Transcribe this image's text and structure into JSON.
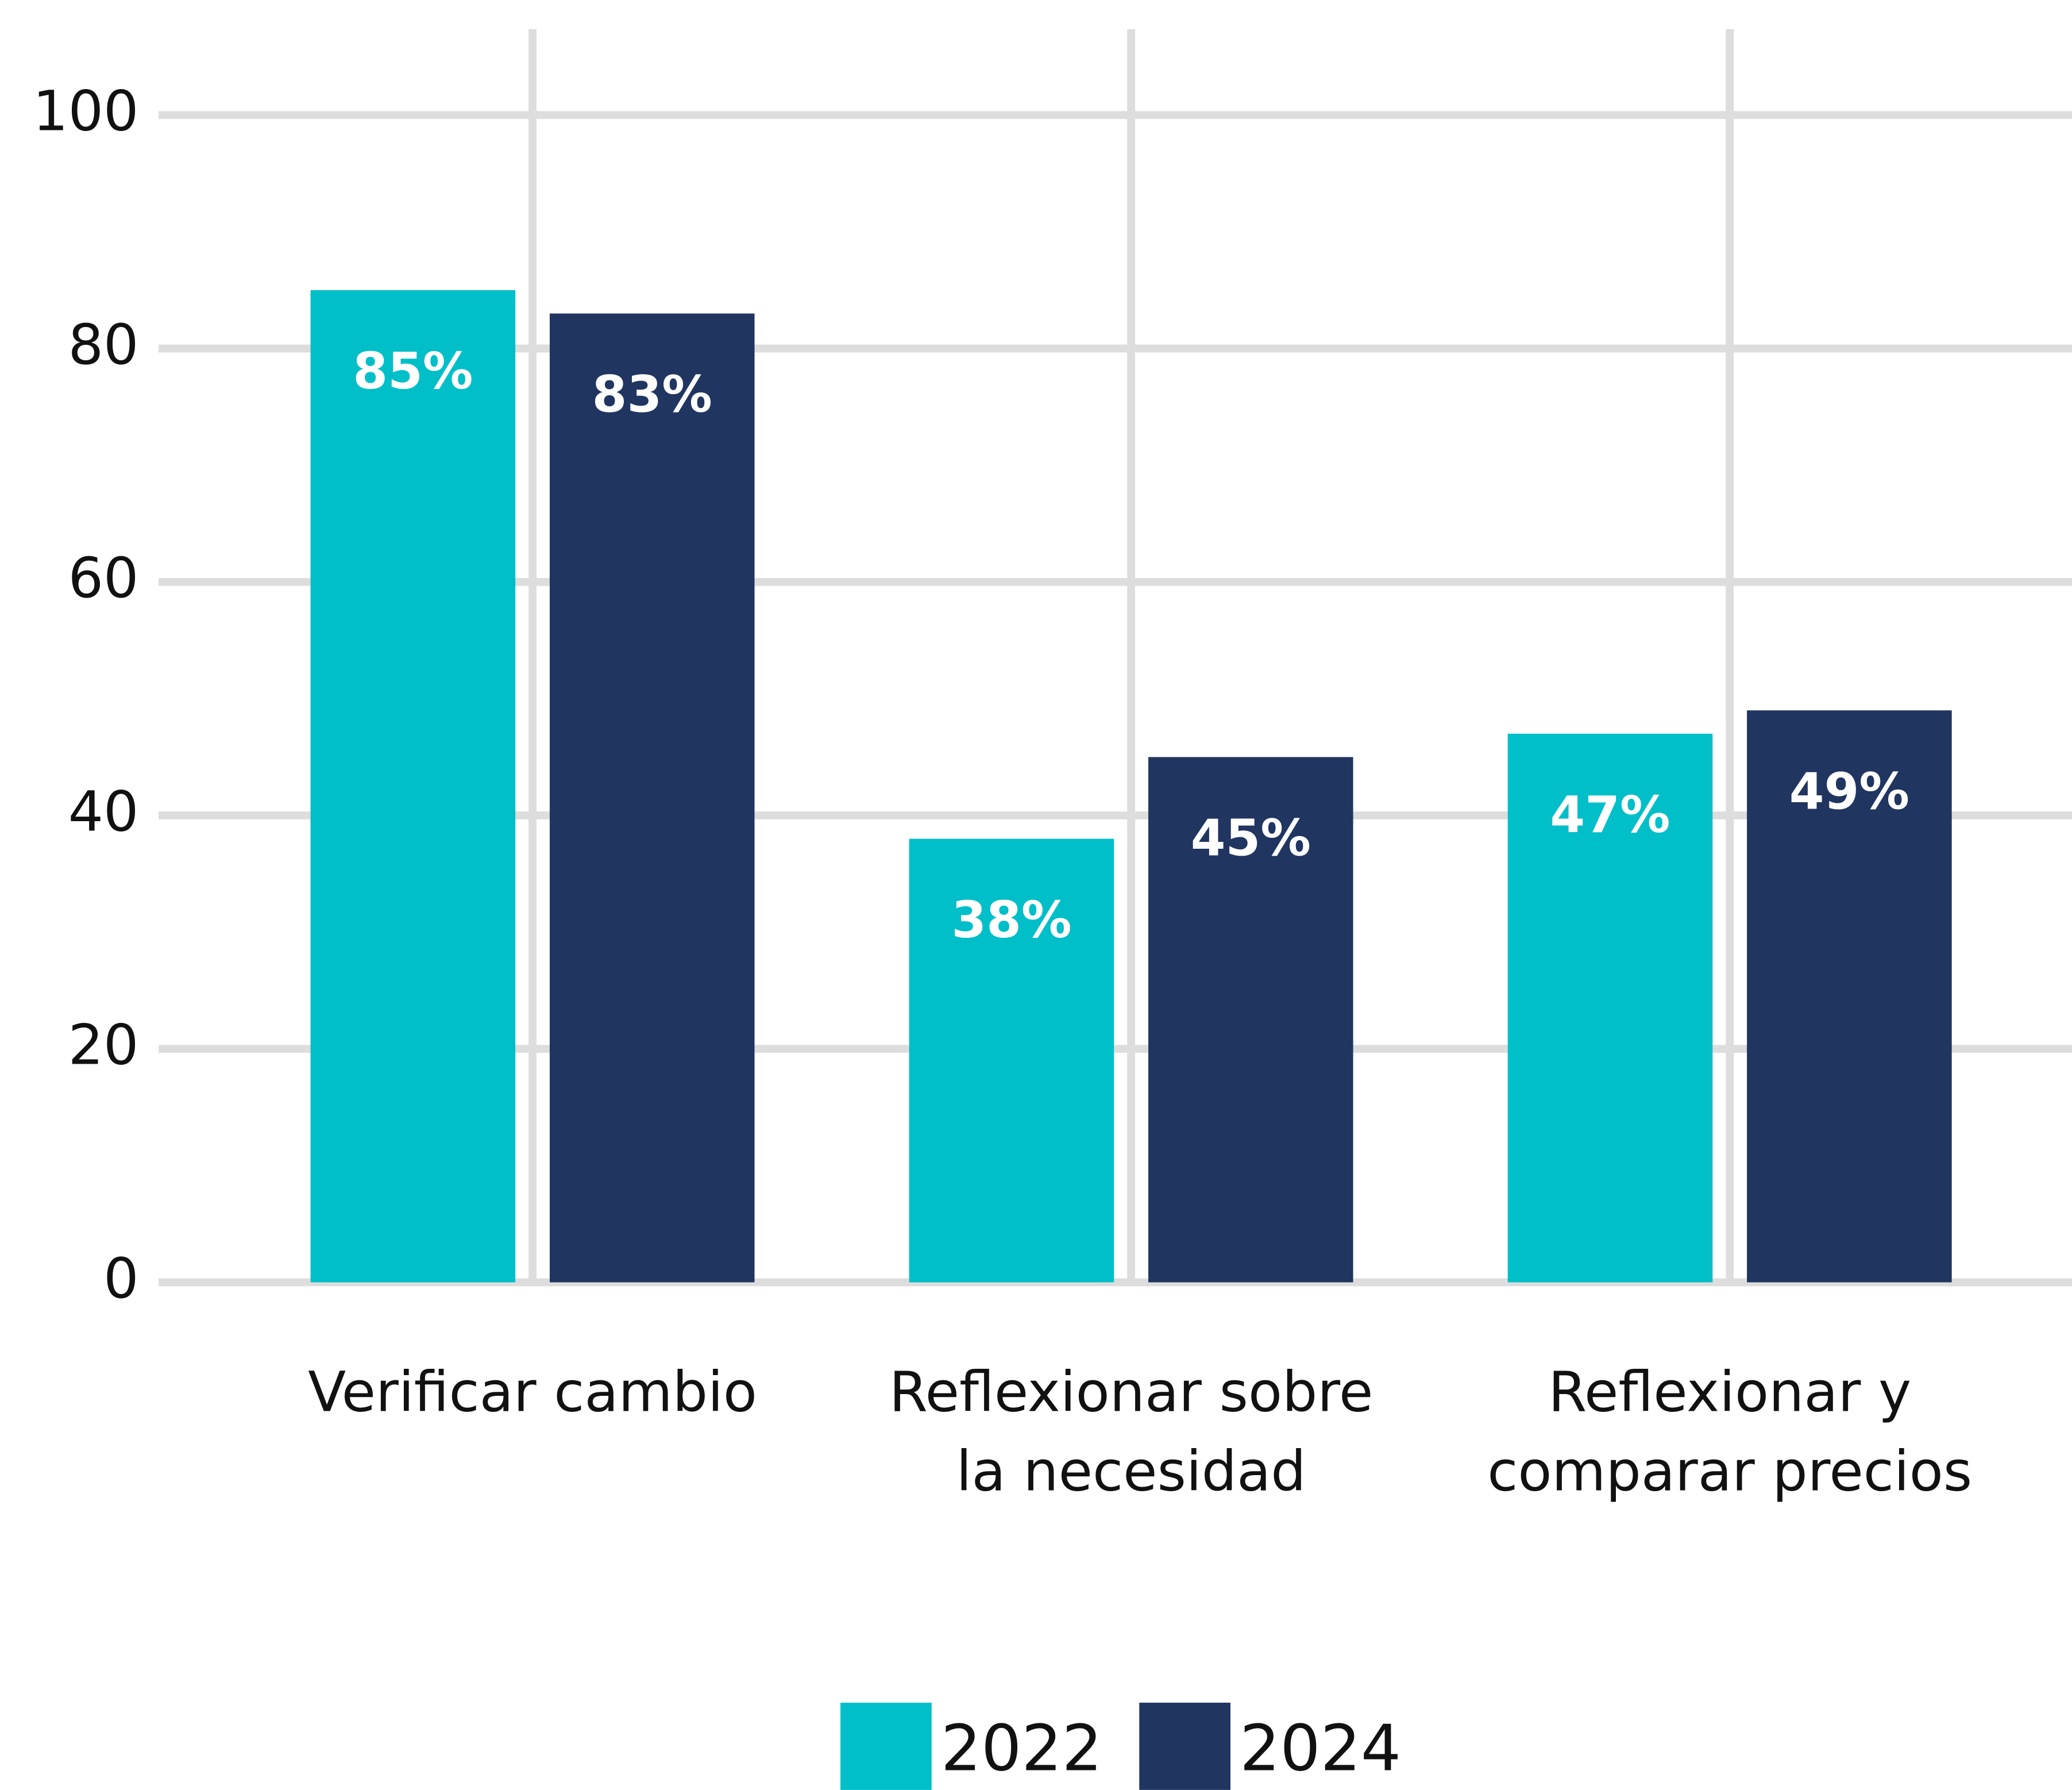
{
  "chart_data": {
    "type": "bar",
    "categories": [
      [
        "Verificar cambio"
      ],
      [
        "Reflexionar sobre",
        "la necesidad"
      ],
      [
        "Reflexionar y",
        "comparar precios"
      ]
    ],
    "series": [
      {
        "name": "2022",
        "color": "#00bfc8",
        "values": [
          85,
          38,
          47
        ],
        "value_labels": [
          "85%",
          "38%",
          "47%"
        ]
      },
      {
        "name": "2024",
        "color": "#203560",
        "values": [
          83,
          45,
          49
        ],
        "value_labels": [
          "83%",
          "45%",
          "49%"
        ]
      }
    ],
    "ylim": [
      0,
      100
    ],
    "yticks": [
      0,
      20,
      40,
      60,
      80,
      100
    ],
    "grid": true,
    "legend": "bottom"
  }
}
